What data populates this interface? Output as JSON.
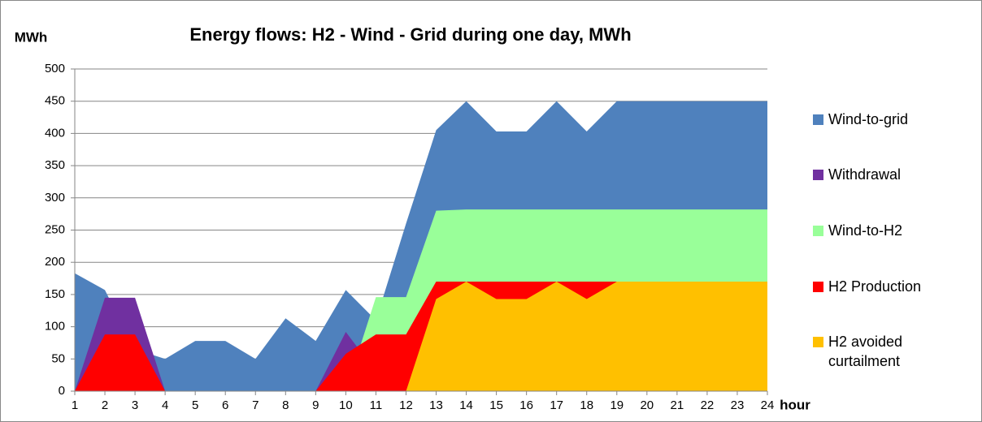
{
  "chart_data": {
    "type": "area",
    "title": "Energy flows: H2 - Wind - Grid during one day, MWh",
    "y_label": "MWh",
    "x_label": "hour",
    "x": [
      1,
      2,
      3,
      4,
      5,
      6,
      7,
      8,
      9,
      10,
      11,
      12,
      13,
      14,
      15,
      16,
      17,
      18,
      19,
      20,
      21,
      22,
      23,
      24
    ],
    "xlim": [
      1,
      24
    ],
    "ylim": [
      0,
      500
    ],
    "yticks": [
      0,
      50,
      100,
      150,
      200,
      250,
      300,
      350,
      400,
      450,
      500
    ],
    "grid": true,
    "legend": "right",
    "series": [
      {
        "name": "Wind-to-grid",
        "color": "#4f81bd",
        "values": [
          183,
          157,
          65,
          50,
          78,
          78,
          50,
          113,
          78,
          157,
          110,
          260,
          405,
          450,
          403,
          403,
          450,
          403,
          450,
          450,
          450,
          450,
          450,
          450
        ]
      },
      {
        "name": "Withdrawal",
        "color": "#7030a0",
        "values": [
          0,
          145,
          145,
          0,
          0,
          0,
          0,
          0,
          0,
          92,
          30,
          0,
          0,
          0,
          0,
          0,
          0,
          0,
          0,
          0,
          0,
          0,
          0,
          0
        ]
      },
      {
        "name": "Wind-to-H2",
        "color": "#99ff99",
        "values": [
          0,
          0,
          0,
          0,
          0,
          0,
          0,
          0,
          0,
          0,
          146,
          146,
          280,
          282,
          282,
          282,
          282,
          282,
          282,
          282,
          282,
          282,
          282,
          282
        ]
      },
      {
        "name": "H2 Production",
        "color": "#ff0000",
        "values": [
          0,
          88,
          88,
          0,
          0,
          0,
          0,
          0,
          0,
          58,
          88,
          88,
          170,
          170,
          170,
          170,
          170,
          170,
          170,
          170,
          170,
          170,
          170,
          170
        ]
      },
      {
        "name": "H2 avoided curtailment",
        "color": "#ffc000",
        "values": [
          0,
          0,
          0,
          0,
          0,
          0,
          0,
          0,
          0,
          0,
          0,
          0,
          143,
          170,
          143,
          143,
          170,
          143,
          170,
          170,
          170,
          170,
          170,
          170
        ]
      }
    ]
  }
}
